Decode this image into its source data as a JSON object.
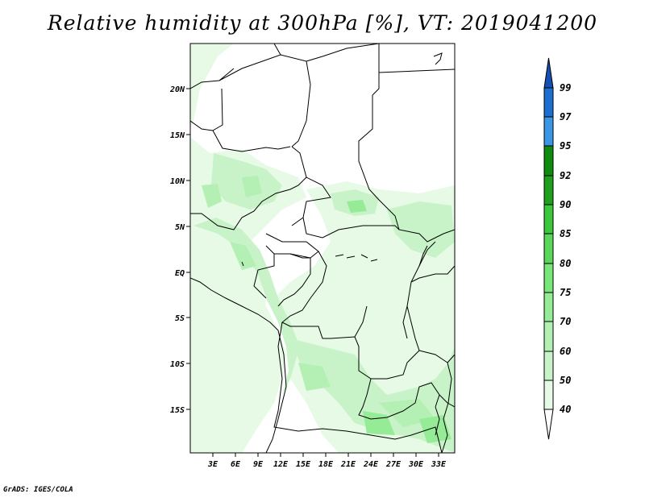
{
  "title": "Relative humidity at 300hPa [%], VT: 2019041200",
  "footer": "GrADS: IGES/COLA",
  "map": {
    "lat_labels": [
      "20N",
      "15N",
      "10N",
      "5N",
      "EQ",
      "5S",
      "10S",
      "15S"
    ],
    "lon_labels": [
      "3E",
      "6E",
      "9E",
      "12E",
      "15E",
      "18E",
      "21E",
      "24E",
      "27E",
      "30E",
      "33E"
    ]
  },
  "colorbar": {
    "levels": [
      "40",
      "50",
      "60",
      "70",
      "75",
      "80",
      "85",
      "90",
      "92",
      "95",
      "97",
      "99"
    ],
    "colors": [
      "#ffffff",
      "#e6fae6",
      "#c8f3c8",
      "#b4efb4",
      "#96eb96",
      "#78e678",
      "#5ad75a",
      "#3cc83c",
      "#1ea01e",
      "#0f8c0f",
      "#3c96e6",
      "#1e6ed2",
      "#1450b4"
    ]
  }
}
